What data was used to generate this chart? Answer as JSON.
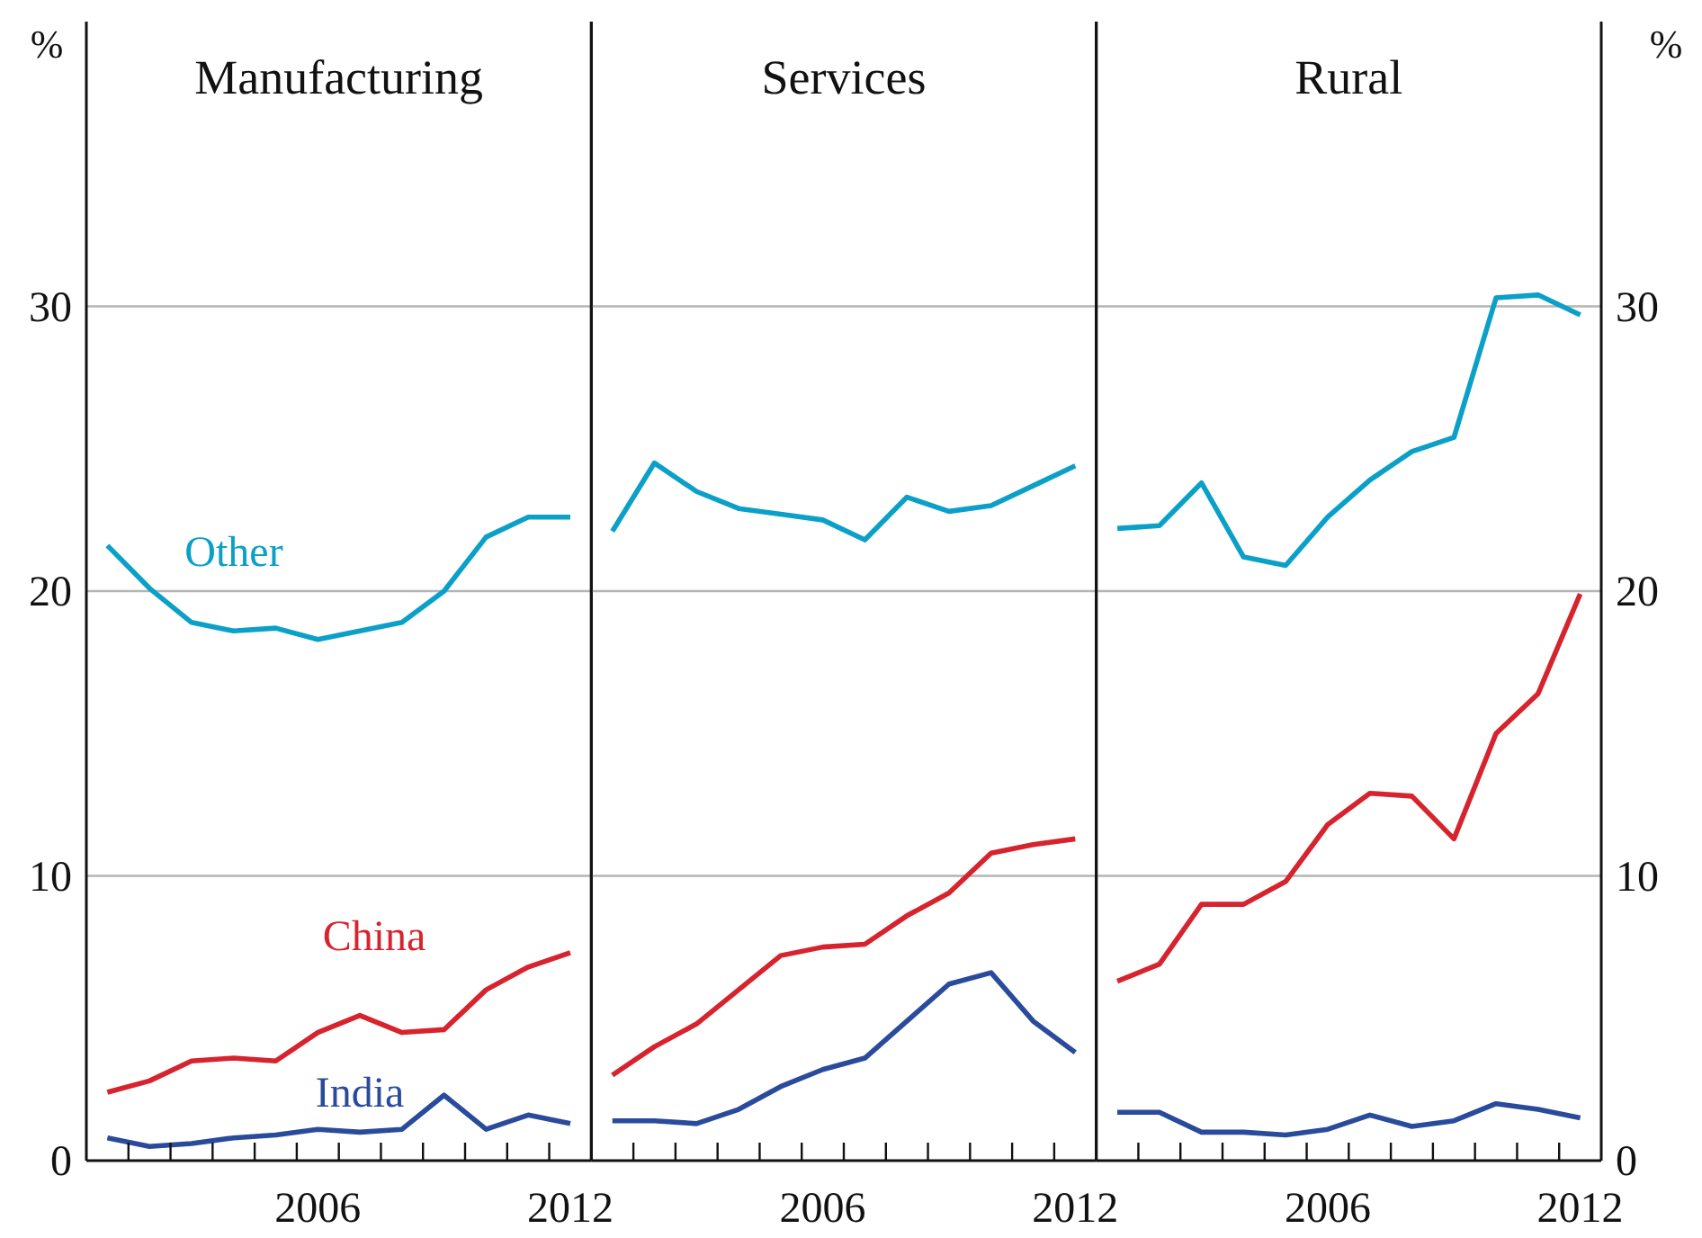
{
  "chart_data": [
    {
      "type": "line",
      "title": "Manufacturing",
      "ylabel": "%",
      "x": [
        2001,
        2002,
        2003,
        2004,
        2005,
        2006,
        2007,
        2008,
        2009,
        2010,
        2011,
        2012
      ],
      "xlim": [
        2000.5,
        2012.5
      ],
      "xticks": [
        {
          "value": 2001.5,
          "label": null
        },
        {
          "value": 2002.5,
          "label": null
        },
        {
          "value": 2003.5,
          "label": null
        },
        {
          "value": 2004.5,
          "label": null
        },
        {
          "value": 2005.5,
          "label": null
        },
        {
          "value": 2006,
          "label": "2006"
        },
        {
          "value": 2006.5,
          "label": null
        },
        {
          "value": 2007.5,
          "label": null
        },
        {
          "value": 2008.5,
          "label": null
        },
        {
          "value": 2009.5,
          "label": null
        },
        {
          "value": 2010.5,
          "label": null
        },
        {
          "value": 2011.5,
          "label": null
        },
        {
          "value": 2012,
          "label": "2012"
        }
      ],
      "ylim": [
        0,
        40
      ],
      "yticks": [
        0,
        10,
        20,
        30
      ],
      "grid": "y",
      "legend": false,
      "series": [
        {
          "name": "Other",
          "color": "#0aa0c8",
          "values": [
            21.6,
            20.1,
            18.9,
            18.6,
            18.7,
            18.3,
            18.6,
            18.9,
            20.0,
            21.9,
            22.6,
            22.6
          ]
        },
        {
          "name": "China",
          "color": "#d7232d",
          "values": [
            2.4,
            2.8,
            3.5,
            3.6,
            3.5,
            4.5,
            5.1,
            4.5,
            4.6,
            6.0,
            6.8,
            7.3
          ]
        },
        {
          "name": "India",
          "color": "#2a4b9b",
          "values": [
            0.8,
            0.5,
            0.6,
            0.8,
            0.9,
            1.1,
            1.0,
            1.1,
            2.3,
            1.1,
            1.6,
            1.3
          ]
        }
      ]
    },
    {
      "type": "line",
      "title": "Services",
      "x": [
        2001,
        2002,
        2003,
        2004,
        2005,
        2006,
        2007,
        2008,
        2009,
        2010,
        2011,
        2012
      ],
      "xlim": [
        2000.5,
        2012.5
      ],
      "xticks": [
        {
          "value": 2001.5,
          "label": null
        },
        {
          "value": 2002.5,
          "label": null
        },
        {
          "value": 2003.5,
          "label": null
        },
        {
          "value": 2004.5,
          "label": null
        },
        {
          "value": 2005.5,
          "label": null
        },
        {
          "value": 2006,
          "label": "2006"
        },
        {
          "value": 2006.5,
          "label": null
        },
        {
          "value": 2007.5,
          "label": null
        },
        {
          "value": 2008.5,
          "label": null
        },
        {
          "value": 2009.5,
          "label": null
        },
        {
          "value": 2010.5,
          "label": null
        },
        {
          "value": 2011.5,
          "label": null
        },
        {
          "value": 2012,
          "label": "2012"
        }
      ],
      "ylim": [
        0,
        40
      ],
      "yticks": [
        0,
        10,
        20,
        30
      ],
      "grid": "y",
      "legend": false,
      "tick_labels": "x",
      "series": [
        {
          "color": "#0aa0c8",
          "values": [
            22.1,
            24.5,
            23.5,
            22.9,
            22.7,
            22.5,
            21.8,
            23.3,
            22.8,
            23.0,
            23.7,
            24.4
          ]
        },
        {
          "color": "#d7232d",
          "values": [
            3.0,
            4.0,
            4.8,
            6.0,
            7.2,
            7.5,
            7.6,
            8.6,
            9.4,
            10.8,
            11.1,
            11.3
          ]
        },
        {
          "color": "#2a4b9b",
          "values": [
            1.4,
            1.4,
            1.3,
            1.8,
            2.6,
            3.2,
            3.6,
            4.9,
            6.2,
            6.6,
            4.9,
            3.8
          ]
        }
      ]
    },
    {
      "type": "line",
      "title": "Rural",
      "ylabel": "%",
      "x": [
        2001,
        2002,
        2003,
        2004,
        2005,
        2006,
        2007,
        2008,
        2009,
        2010,
        2011,
        2012
      ],
      "xlim": [
        2000.5,
        2012.5
      ],
      "xticks": [
        {
          "value": 2001.5,
          "label": null
        },
        {
          "value": 2002.5,
          "label": null
        },
        {
          "value": 2003.5,
          "label": null
        },
        {
          "value": 2004.5,
          "label": null
        },
        {
          "value": 2005.5,
          "label": null
        },
        {
          "value": 2006,
          "label": "2006"
        },
        {
          "value": 2006.5,
          "label": null
        },
        {
          "value": 2007.5,
          "label": null
        },
        {
          "value": 2008.5,
          "label": null
        },
        {
          "value": 2009.5,
          "label": null
        },
        {
          "value": 2010.5,
          "label": null
        },
        {
          "value": 2011.5,
          "label": null
        },
        {
          "value": 2012,
          "label": "2012"
        }
      ],
      "ylim": [
        0,
        40
      ],
      "yticks": [
        0,
        10,
        20,
        30
      ],
      "grid": "y",
      "legend": false,
      "series": [
        {
          "color": "#0aa0c8",
          "values": [
            22.2,
            22.3,
            23.8,
            21.2,
            20.9,
            22.6,
            23.9,
            24.9,
            25.4,
            30.3,
            30.4,
            29.7
          ]
        },
        {
          "color": "#d7232d",
          "values": [
            6.3,
            6.9,
            9.0,
            9.0,
            9.8,
            11.8,
            12.9,
            12.8,
            11.3,
            15.0,
            16.4,
            19.9
          ]
        },
        {
          "color": "#2a4b9b",
          "values": [
            1.7,
            1.7,
            1.0,
            1.0,
            0.9,
            1.1,
            1.6,
            1.2,
            1.4,
            2.0,
            1.8,
            1.5
          ]
        }
      ]
    }
  ]
}
